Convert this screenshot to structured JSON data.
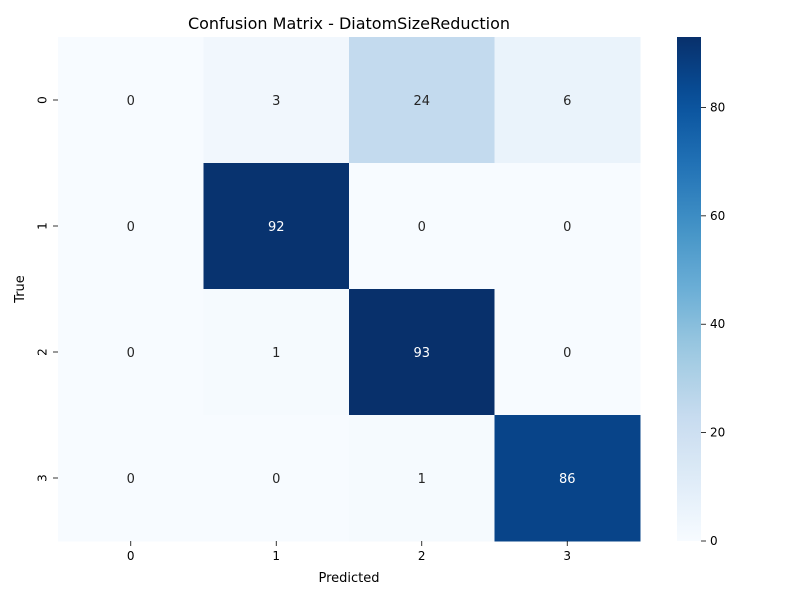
{
  "chart_data": {
    "type": "heatmap",
    "title": "Confusion Matrix - DiatomSizeReduction",
    "xlabel": "Predicted",
    "ylabel": "True",
    "x_categories": [
      "0",
      "1",
      "2",
      "3"
    ],
    "y_categories": [
      "0",
      "1",
      "2",
      "3"
    ],
    "matrix": [
      [
        0,
        3,
        24,
        6
      ],
      [
        0,
        92,
        0,
        0
      ],
      [
        0,
        1,
        93,
        0
      ],
      [
        0,
        0,
        1,
        86
      ]
    ],
    "colormap": "Blues",
    "colorbar": {
      "min": 0,
      "max": 93,
      "ticks": [
        0,
        20,
        40,
        60,
        80
      ],
      "tick_labels": [
        "0",
        "20",
        "40",
        "60",
        "80"
      ]
    },
    "colors": {
      "low": "#f7fbff",
      "high": "#08306b",
      "text_dark": "#262626",
      "text_light": "#ffffff"
    }
  }
}
